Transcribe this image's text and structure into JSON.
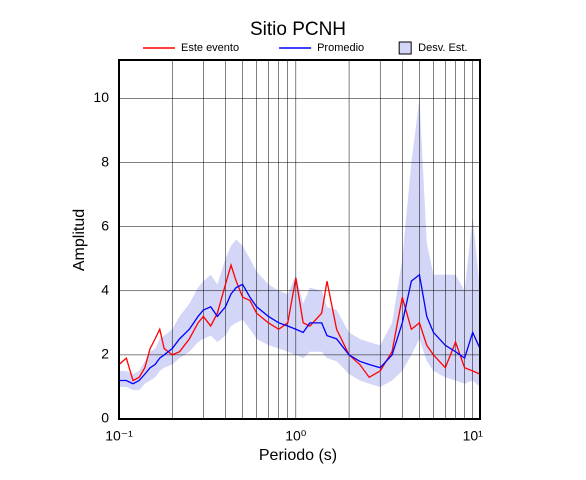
{
  "chart_data": {
    "type": "line",
    "title": "Sitio PCNH",
    "xlabel": "Periodo (s)",
    "ylabel": "Amplitud",
    "xscale": "log",
    "grid": true,
    "xlim": [
      0.1,
      11
    ],
    "ylim": [
      0,
      11.2
    ],
    "xticks": [
      {
        "value": 0.1,
        "label": "10⁻¹"
      },
      {
        "value": 1,
        "label": "10⁰"
      },
      {
        "value": 10,
        "label": "10¹"
      }
    ],
    "xminor": [
      0.2,
      0.3,
      0.4,
      0.5,
      0.6,
      0.7,
      0.8,
      0.9,
      2,
      3,
      4,
      5,
      6,
      7,
      8,
      9
    ],
    "yticks": [
      0,
      2,
      4,
      6,
      8,
      10
    ],
    "x": [
      0.1,
      0.11,
      0.12,
      0.13,
      0.14,
      0.15,
      0.16,
      0.17,
      0.18,
      0.2,
      0.22,
      0.25,
      0.28,
      0.3,
      0.33,
      0.36,
      0.4,
      0.43,
      0.46,
      0.5,
      0.55,
      0.6,
      0.7,
      0.8,
      0.9,
      1.0,
      1.1,
      1.2,
      1.4,
      1.5,
      1.7,
      2.0,
      2.3,
      2.6,
      3.0,
      3.5,
      4.0,
      4.5,
      5.0,
      5.5,
      6.0,
      7.0,
      8.0,
      9.0,
      10.0,
      11.0
    ],
    "band": {
      "name": "Desv. Est.",
      "color": "#d4d6f7",
      "lower": [
        1.0,
        1.0,
        0.9,
        0.9,
        1.1,
        1.2,
        1.3,
        1.5,
        1.6,
        1.7,
        1.9,
        2.1,
        2.4,
        2.5,
        2.6,
        2.4,
        2.6,
        2.9,
        3.0,
        3.1,
        2.8,
        2.5,
        2.3,
        2.2,
        2.1,
        2.0,
        1.9,
        2.1,
        2.1,
        1.9,
        1.8,
        1.4,
        1.2,
        1.1,
        1.0,
        1.2,
        1.5,
        2.0,
        2.5,
        1.8,
        1.5,
        1.3,
        1.2,
        1.1,
        1.2,
        1.0
      ],
      "upper": [
        1.5,
        1.5,
        1.4,
        1.5,
        1.8,
        2.1,
        2.2,
        2.5,
        2.6,
        2.8,
        3.2,
        3.6,
        4.1,
        4.3,
        4.5,
        4.2,
        5.0,
        5.4,
        5.6,
        5.4,
        5.0,
        4.6,
        4.2,
        4.0,
        3.9,
        4.5,
        3.6,
        4.1,
        4.0,
        3.5,
        3.4,
        2.7,
        2.5,
        2.4,
        2.3,
        3.0,
        5.0,
        8.0,
        10.0,
        5.5,
        4.5,
        4.5,
        4.5,
        4.0,
        6.3,
        4.0
      ]
    },
    "series": [
      {
        "name": "Este evento",
        "color": "#ff0000",
        "values": [
          1.7,
          1.9,
          1.2,
          1.3,
          1.6,
          2.2,
          2.5,
          2.8,
          2.2,
          2.0,
          2.1,
          2.5,
          3.0,
          3.2,
          2.9,
          3.3,
          4.2,
          4.8,
          4.3,
          3.8,
          3.7,
          3.3,
          3.0,
          2.8,
          3.0,
          4.4,
          3.0,
          2.9,
          3.3,
          4.3,
          2.8,
          2.0,
          1.7,
          1.3,
          1.5,
          2.1,
          3.8,
          2.8,
          3.0,
          2.3,
          2.0,
          1.6,
          2.4,
          1.6,
          1.5,
          1.4
        ]
      },
      {
        "name": "Promedio",
        "color": "#0000ff",
        "values": [
          1.2,
          1.2,
          1.1,
          1.2,
          1.4,
          1.6,
          1.7,
          1.9,
          2.0,
          2.2,
          2.5,
          2.8,
          3.2,
          3.4,
          3.5,
          3.2,
          3.5,
          3.9,
          4.1,
          4.2,
          3.8,
          3.5,
          3.2,
          3.0,
          2.9,
          2.8,
          2.7,
          3.0,
          3.0,
          2.6,
          2.5,
          2.0,
          1.8,
          1.7,
          1.6,
          2.0,
          3.0,
          4.3,
          4.5,
          3.2,
          2.7,
          2.3,
          2.1,
          1.9,
          2.7,
          2.2
        ]
      }
    ]
  }
}
